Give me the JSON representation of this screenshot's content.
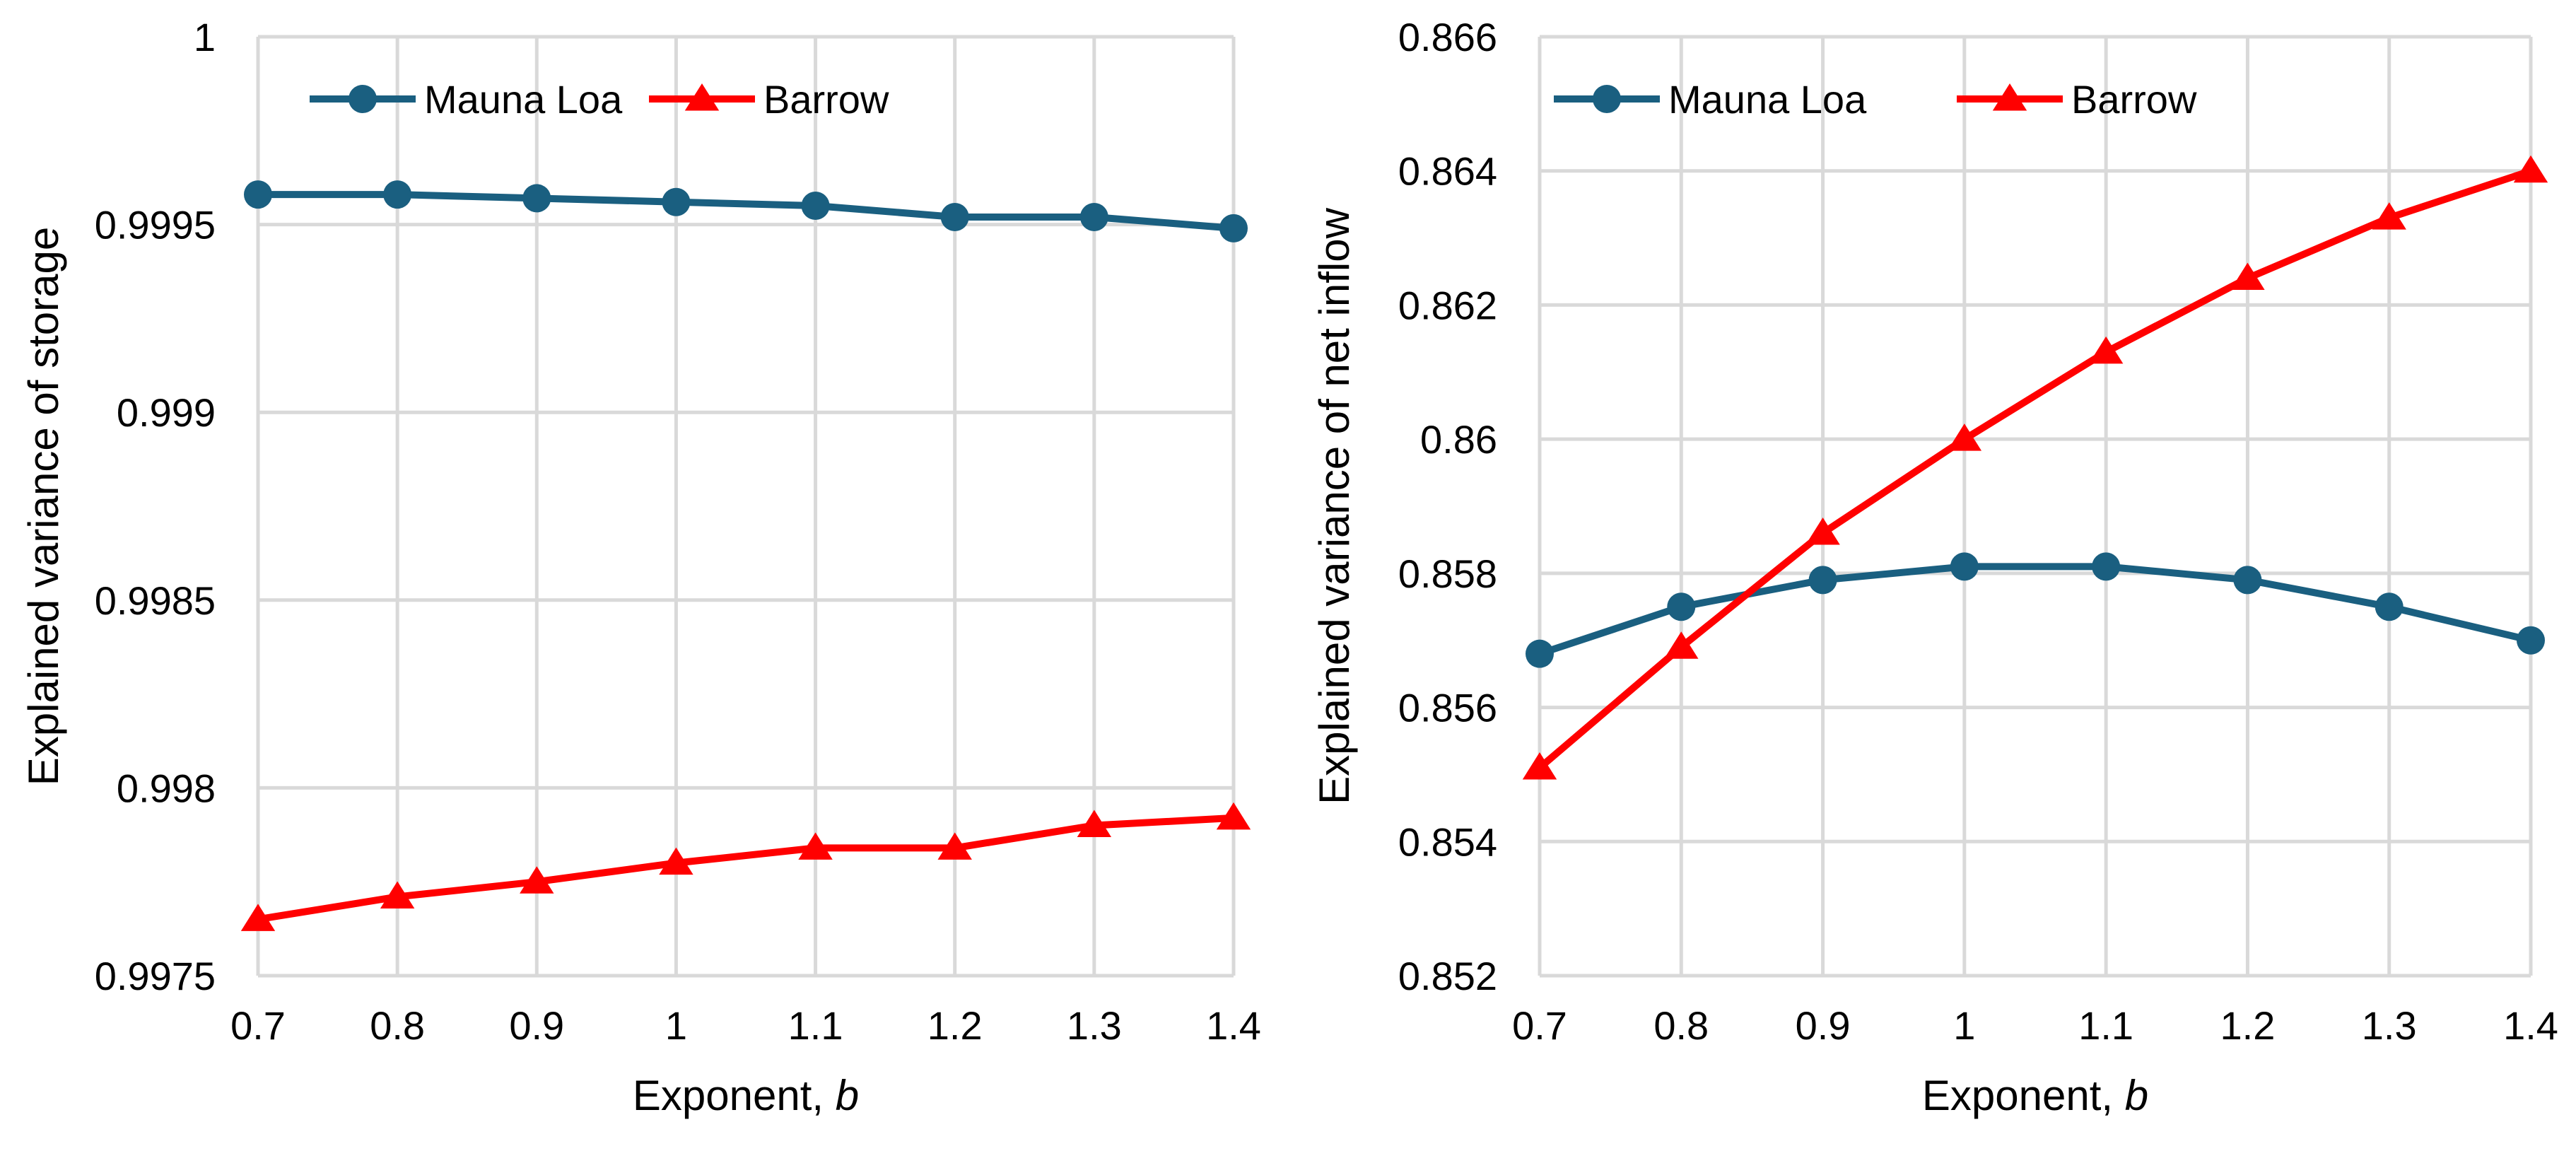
{
  "charts": [
    {
      "type": "line",
      "title": "",
      "xlabel_main": "Exponent, ",
      "xlabel_var": "b",
      "ylabel": "Explained variance of storage",
      "x": [
        0.7,
        0.8,
        0.9,
        1,
        1.1,
        1.2,
        1.3,
        1.4
      ],
      "x_tick_labels": [
        "0.7",
        "0.8",
        "0.9",
        "1",
        "1.1",
        "1.2",
        "1.3",
        "1.4"
      ],
      "xlim": [
        0.7,
        1.4
      ],
      "ylim": [
        0.9975,
        1
      ],
      "y_ticks": [
        0.9975,
        0.998,
        0.9985,
        0.999,
        0.9995,
        1
      ],
      "y_tick_labels": [
        "0.9975",
        "0.998",
        "0.9985",
        "0.999",
        "0.9995",
        "1"
      ],
      "grid": true,
      "legend": "top-left",
      "series": [
        {
          "name": "Mauna Loa",
          "color": "#1a5f80",
          "marker": "circle",
          "values": [
            0.99958,
            0.99958,
            0.99957,
            0.99956,
            0.99955,
            0.99952,
            0.99952,
            0.99949
          ]
        },
        {
          "name": "Barrow",
          "color": "#ff0000",
          "marker": "triangle",
          "values": [
            0.99765,
            0.99771,
            0.99775,
            0.9978,
            0.99784,
            0.99784,
            0.9979,
            0.99792
          ]
        }
      ]
    },
    {
      "type": "line",
      "title": "",
      "xlabel_main": "Exponent, ",
      "xlabel_var": "b",
      "ylabel": "Explained variance of net inflow",
      "x": [
        0.7,
        0.8,
        0.9,
        1,
        1.1,
        1.2,
        1.3,
        1.4
      ],
      "x_tick_labels": [
        "0.7",
        "0.8",
        "0.9",
        "1",
        "1.1",
        "1.2",
        "1.3",
        "1.4"
      ],
      "xlim": [
        0.7,
        1.4
      ],
      "ylim": [
        0.852,
        0.866
      ],
      "y_ticks": [
        0.852,
        0.854,
        0.856,
        0.858,
        0.86,
        0.862,
        0.864,
        0.866
      ],
      "y_tick_labels": [
        "0.852",
        "0.854",
        "0.856",
        "0.858",
        "0.86",
        "0.862",
        "0.864",
        "0.866"
      ],
      "grid": true,
      "legend": "top-left",
      "series": [
        {
          "name": "Mauna Loa",
          "color": "#1a5f80",
          "marker": "circle",
          "values": [
            0.8568,
            0.8575,
            0.8579,
            0.8581,
            0.8581,
            0.8579,
            0.8575,
            0.857
          ]
        },
        {
          "name": "Barrow",
          "color": "#ff0000",
          "marker": "triangle",
          "values": [
            0.8551,
            0.8569,
            0.8586,
            0.86,
            0.8613,
            0.8624,
            0.8633,
            0.864
          ]
        }
      ]
    }
  ]
}
